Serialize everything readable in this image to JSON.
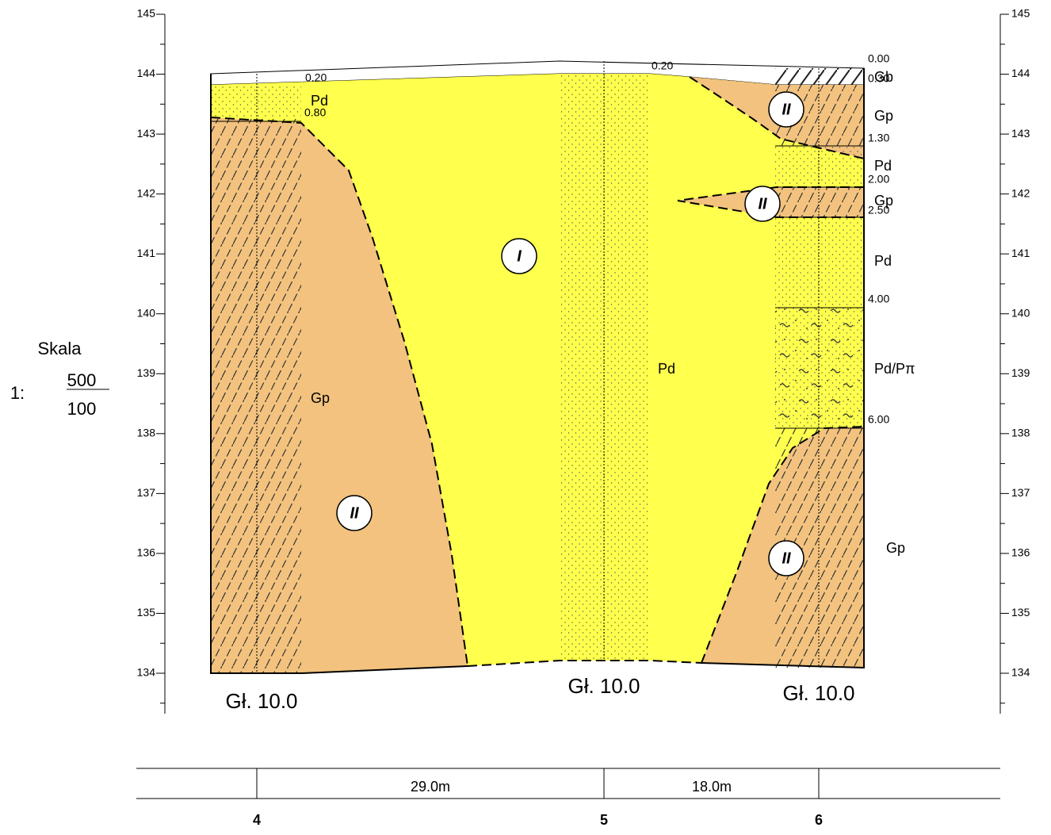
{
  "elevation_ticks": [
    145,
    144,
    143,
    142,
    141,
    140,
    139,
    138,
    137,
    136,
    135,
    134
  ],
  "scale": {
    "label": "Skala",
    "prefix": "1:",
    "horizontal": 500,
    "vertical": 100
  },
  "depth_marks": [
    "0.20",
    "0.80",
    "0.20",
    "0.00",
    "0.30",
    "1.30",
    "2.00",
    "2.50",
    "4.00",
    "6.00"
  ],
  "soil_labels": [
    "Pd",
    "Gp",
    "Pd",
    "Gb",
    "Gp",
    "Pd",
    "Gp",
    "Pd",
    "Pd/Pπ",
    "Gp"
  ],
  "zones": [
    "II",
    "II",
    "I",
    "II",
    "II"
  ],
  "boreholes": [
    {
      "id": 4,
      "depth": "Gł. 10.0"
    },
    {
      "id": 5,
      "depth": "Gł. 10.0"
    },
    {
      "id": 6,
      "depth": "Gł. 10.0"
    }
  ],
  "distances": [
    "29.0m",
    "18.0m"
  ]
}
